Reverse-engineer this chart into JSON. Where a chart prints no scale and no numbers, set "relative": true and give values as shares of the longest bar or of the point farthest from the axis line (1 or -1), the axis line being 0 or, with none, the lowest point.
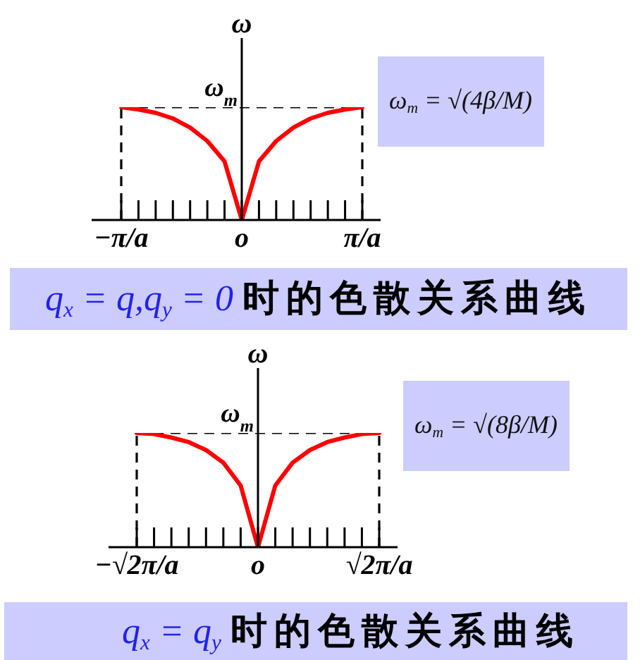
{
  "chart_data": [
    {
      "type": "line",
      "relative": true,
      "title": "q$_{x}$ = q,q$_{y}$ = 0 时的色散关系曲线",
      "ylabel": "ω",
      "annotations": [
        "ω$_{m}$",
        "ω$_{m}$ = √(4β/M)"
      ],
      "categories": [
        "−π/a",
        null,
        null,
        null,
        null,
        null,
        null,
        "o",
        null,
        null,
        null,
        null,
        null,
        null,
        "π/a"
      ],
      "series": [
        {
          "color": "#000000",
          "line_style": "dashed",
          "values": [
            1,
            1,
            1,
            1,
            1,
            1,
            1,
            1,
            1,
            1,
            1,
            1,
            1,
            1,
            1
          ]
        },
        {
          "color": "#ff0000",
          "values": [
            1,
            0.98,
            0.95,
            0.9,
            0.82,
            0.7,
            0.52,
            0,
            0.52,
            0.7,
            0.82,
            0.9,
            0.95,
            0.98,
            1
          ]
        }
      ],
      "ref_lines": [
        {
          "axis": "x",
          "value": "−π/a",
          "color": "#000000",
          "line_style": "dashed"
        },
        {
          "axis": "x",
          "value": "π/a",
          "color": "#000000",
          "line_style": "dashed"
        }
      ]
    },
    {
      "type": "line",
      "relative": true,
      "title": "q$_{x}$ = q$_{y}$ 时的色散关系曲线",
      "ylabel": "ω",
      "annotations": [
        "ω$_{m}$",
        "ω$_{m}$ = √(8β/M)"
      ],
      "categories": [
        "−√2π/a",
        null,
        null,
        null,
        null,
        null,
        null,
        "o",
        null,
        null,
        null,
        null,
        null,
        null,
        "√2π/a"
      ],
      "series": [
        {
          "color": "#000000",
          "line_style": "dashed",
          "values": [
            1,
            1,
            1,
            1,
            1,
            1,
            1,
            1,
            1,
            1,
            1,
            1,
            1,
            1,
            1
          ]
        },
        {
          "color": "#ff0000",
          "values": [
            1,
            0.99,
            0.96,
            0.92,
            0.85,
            0.74,
            0.54,
            0,
            0.54,
            0.74,
            0.85,
            0.92,
            0.96,
            0.99,
            1
          ]
        }
      ],
      "ref_lines": [
        {
          "axis": "x",
          "value": "−√2π/a",
          "color": "#000000",
          "line_style": "dashed"
        },
        {
          "axis": "x",
          "value": "√2π/a",
          "color": "#000000",
          "line_style": "dashed"
        }
      ]
    }
  ]
}
